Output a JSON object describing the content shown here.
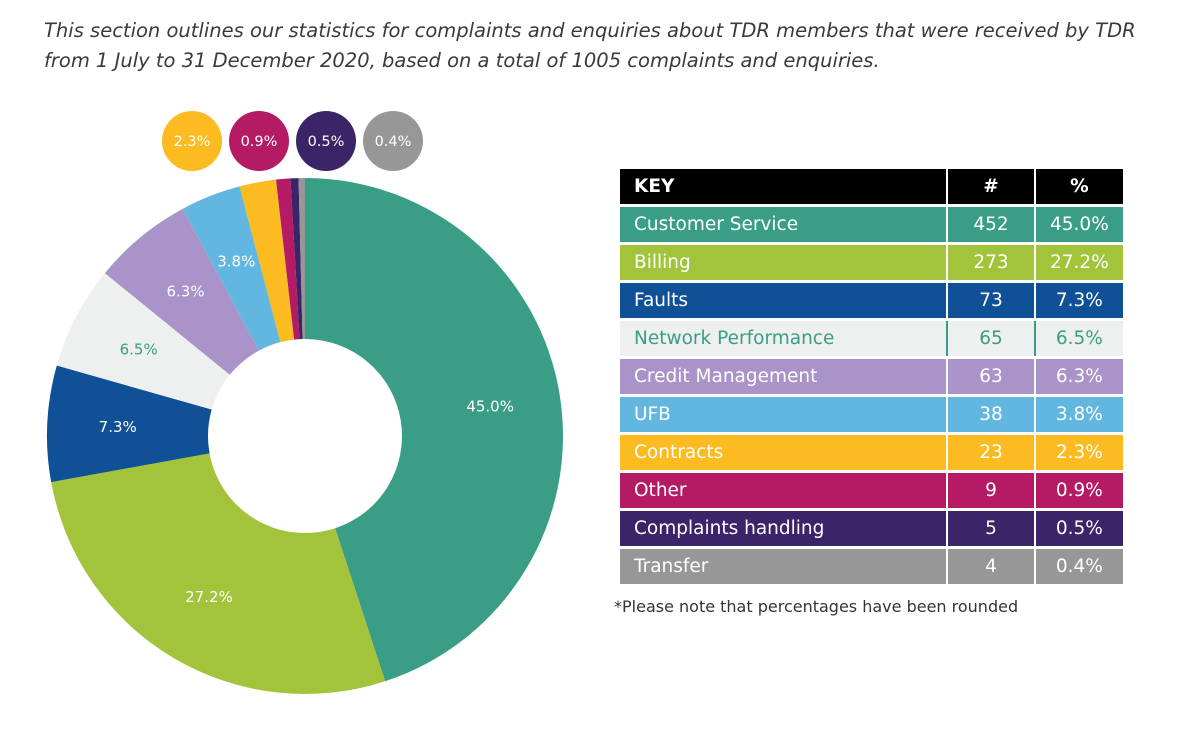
{
  "intro": "This section outlines our statistics for complaints and enquiries about TDR members that were received by TDR from 1 July to 31 December 2020, based on a total of 1005 complaints and enquiries.",
  "note": "*Please note that percentages have been rounded",
  "chart_data": {
    "type": "pie",
    "donut": true,
    "table_headers": [
      "KEY",
      "#",
      "%"
    ],
    "categories": [
      "Customer Service",
      "Billing",
      "Faults",
      "Network Performance",
      "Credit Management",
      "UFB",
      "Contracts",
      "Other",
      "Complaints handling",
      "Transfer"
    ],
    "counts": [
      452,
      273,
      73,
      65,
      63,
      38,
      23,
      9,
      5,
      4
    ],
    "percent_labels": [
      "45.0%",
      "27.2%",
      "7.3%",
      "6.5%",
      "6.3%",
      "3.8%",
      "2.3%",
      "0.9%",
      "0.5%",
      "0.4%"
    ],
    "colors": [
      "#3a9e87",
      "#a3c43a",
      "#0f5096",
      "#eeefef",
      "#a993c8",
      "#62b7e1",
      "#fbbb21",
      "#b51a64",
      "#3b2467",
      "#979797"
    ],
    "text_colors": [
      "#ffffff",
      "#ffffff",
      "#ffffff",
      "#3a9e87",
      "#ffffff",
      "#ffffff",
      "#ffffff",
      "#ffffff",
      "#ffffff",
      "#ffffff"
    ],
    "callout_slices": [
      6,
      7,
      8,
      9
    ],
    "legend_placement": "right"
  }
}
